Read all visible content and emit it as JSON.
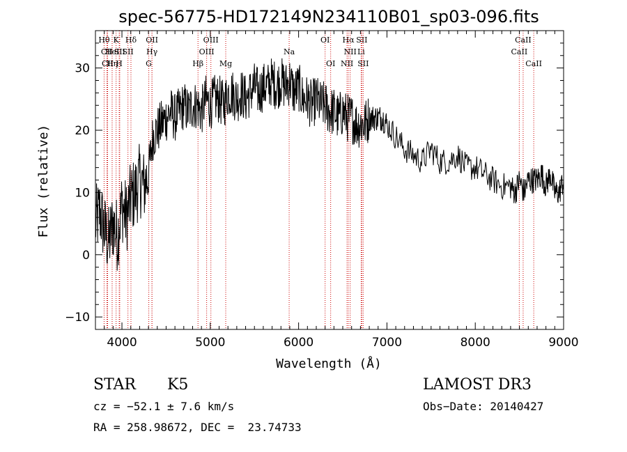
{
  "chart_data": {
    "type": "line",
    "title": "spec-56775-HD172149N234110B01_sp03-096.fits",
    "xlabel": "Wavelength (Å)",
    "ylabel": "Flux (relative)",
    "xlim": [
      3700,
      9000
    ],
    "ylim": [
      -12,
      36
    ],
    "xticks": [
      4000,
      5000,
      6000,
      7000,
      8000,
      9000
    ],
    "yticks": [
      -10,
      0,
      10,
      20,
      30
    ],
    "grid": false,
    "series": [
      {
        "name": "spectrum",
        "x": [
          3700,
          3750,
          3800,
          3850,
          3900,
          3950,
          4000,
          4050,
          4100,
          4150,
          4200,
          4250,
          4300,
          4350,
          4400,
          4450,
          4500,
          4550,
          4600,
          4650,
          4700,
          4750,
          4800,
          4850,
          4900,
          4950,
          5000,
          5050,
          5100,
          5150,
          5200,
          5250,
          5300,
          5350,
          5400,
          5450,
          5500,
          5550,
          5600,
          5650,
          5700,
          5750,
          5800,
          5850,
          5900,
          5950,
          6000,
          6050,
          6100,
          6150,
          6200,
          6250,
          6300,
          6350,
          6400,
          6450,
          6500,
          6550,
          6600,
          6650,
          6700,
          6750,
          6800,
          6850,
          6900,
          6950,
          7000,
          7100,
          7200,
          7300,
          7400,
          7500,
          7600,
          7700,
          7800,
          7900,
          8000,
          8100,
          8200,
          8300,
          8400,
          8450,
          8500,
          8550,
          8600,
          8650,
          8700,
          8750,
          8800,
          8850,
          8900,
          8950,
          9000
        ],
        "values": [
          5,
          7,
          4,
          2,
          5,
          3,
          8,
          6,
          9,
          10,
          12,
          11,
          13,
          19,
          20,
          21,
          22,
          23,
          22,
          23,
          24,
          23,
          24,
          24,
          23,
          25,
          24,
          25,
          25,
          24,
          26,
          26,
          25,
          26,
          25,
          26,
          27,
          26,
          27,
          27,
          28,
          27,
          28,
          27,
          28,
          26,
          27,
          25,
          25,
          24,
          25,
          24,
          24,
          23,
          23,
          22,
          23,
          22,
          22,
          21,
          21,
          21,
          22,
          22,
          22,
          22,
          21,
          19,
          17,
          16,
          15,
          17,
          15,
          15,
          16,
          14,
          14,
          13,
          12,
          11,
          11,
          10,
          12,
          10,
          12,
          12,
          12,
          13,
          11,
          13,
          10,
          10,
          12
        ]
      }
    ],
    "lines": [
      {
        "label": "Hθ",
        "wavelength": 3798,
        "row": 1,
        "color": "#cc0000"
      },
      {
        "label": "CII",
        "wavelength": 3830,
        "row": 2,
        "color": "#cc0000"
      },
      {
        "label": "CII",
        "wavelength": 3838,
        "row": 3,
        "color": "#cc0000"
      },
      {
        "label": "Hη",
        "wavelength": 3889,
        "row": 3,
        "color": "#cc0000"
      },
      {
        "label": "HeI",
        "wavelength": 3889,
        "row": 2,
        "color": "#cc0000"
      },
      {
        "label": "K",
        "wavelength": 3934,
        "row": 1,
        "color": "#cc0000"
      },
      {
        "label": "SII",
        "wavelength": 3975,
        "row": 2,
        "color": "#cc0000"
      },
      {
        "label": "H",
        "wavelength": 3969,
        "row": 3,
        "color": "#cc0000"
      },
      {
        "label": "Hδ",
        "wavelength": 4102,
        "row": 1,
        "color": "#cc0000"
      },
      {
        "label": "SII",
        "wavelength": 4068,
        "row": 2,
        "color": "#cc0000"
      },
      {
        "label": "OII",
        "wavelength": 4340,
        "row": 1,
        "color": "#cc0000"
      },
      {
        "label": "Hγ",
        "wavelength": 4340,
        "row": 2,
        "color": "#cc0000"
      },
      {
        "label": "G",
        "wavelength": 4304,
        "row": 3,
        "color": "#cc0000"
      },
      {
        "label": "Hβ",
        "wavelength": 4861,
        "row": 3,
        "color": "#cc0000"
      },
      {
        "label": "OIII",
        "wavelength": 5007,
        "row": 1,
        "color": "#cc0000"
      },
      {
        "label": "OIII",
        "wavelength": 4959,
        "row": 2,
        "color": "#cc0000"
      },
      {
        "label": "Mg",
        "wavelength": 5175,
        "row": 3,
        "color": "#cc0000"
      },
      {
        "label": "Na",
        "wavelength": 5893,
        "row": 2,
        "color": "#cc0000"
      },
      {
        "label": "OI",
        "wavelength": 6300,
        "row": 1,
        "color": "#cc0000"
      },
      {
        "label": "OI",
        "wavelength": 6363,
        "row": 3,
        "color": "#cc0000"
      },
      {
        "label": "Hα",
        "wavelength": 6563,
        "row": 1,
        "color": "#cc0000"
      },
      {
        "label": "SII",
        "wavelength": 6716,
        "row": 1,
        "color": "#cc0000"
      },
      {
        "label": "NII",
        "wavelength": 6584,
        "row": 2,
        "color": "#cc0000"
      },
      {
        "label": "Li",
        "wavelength": 6708,
        "row": 2,
        "color": "#cc0000"
      },
      {
        "label": "NII",
        "wavelength": 6548,
        "row": 3,
        "color": "#cc0000"
      },
      {
        "label": "SII",
        "wavelength": 6731,
        "row": 3,
        "color": "#cc0000"
      },
      {
        "label": "CaII",
        "wavelength": 8542,
        "row": 1,
        "color": "#cc0000"
      },
      {
        "label": "CaII",
        "wavelength": 8498,
        "row": 2,
        "color": "#cc0000"
      },
      {
        "label": "CaII",
        "wavelength": 8662,
        "row": 3,
        "color": "#cc0000"
      }
    ]
  },
  "info": {
    "class": "STAR",
    "subclass": "K5",
    "survey": "LAMOST DR3",
    "cz": "cz = −52.1 ± 7.6 km/s",
    "obs_date": "Obs−Date: 20140427",
    "coords": "RA = 258.98672, DEC =  23.74733"
  }
}
